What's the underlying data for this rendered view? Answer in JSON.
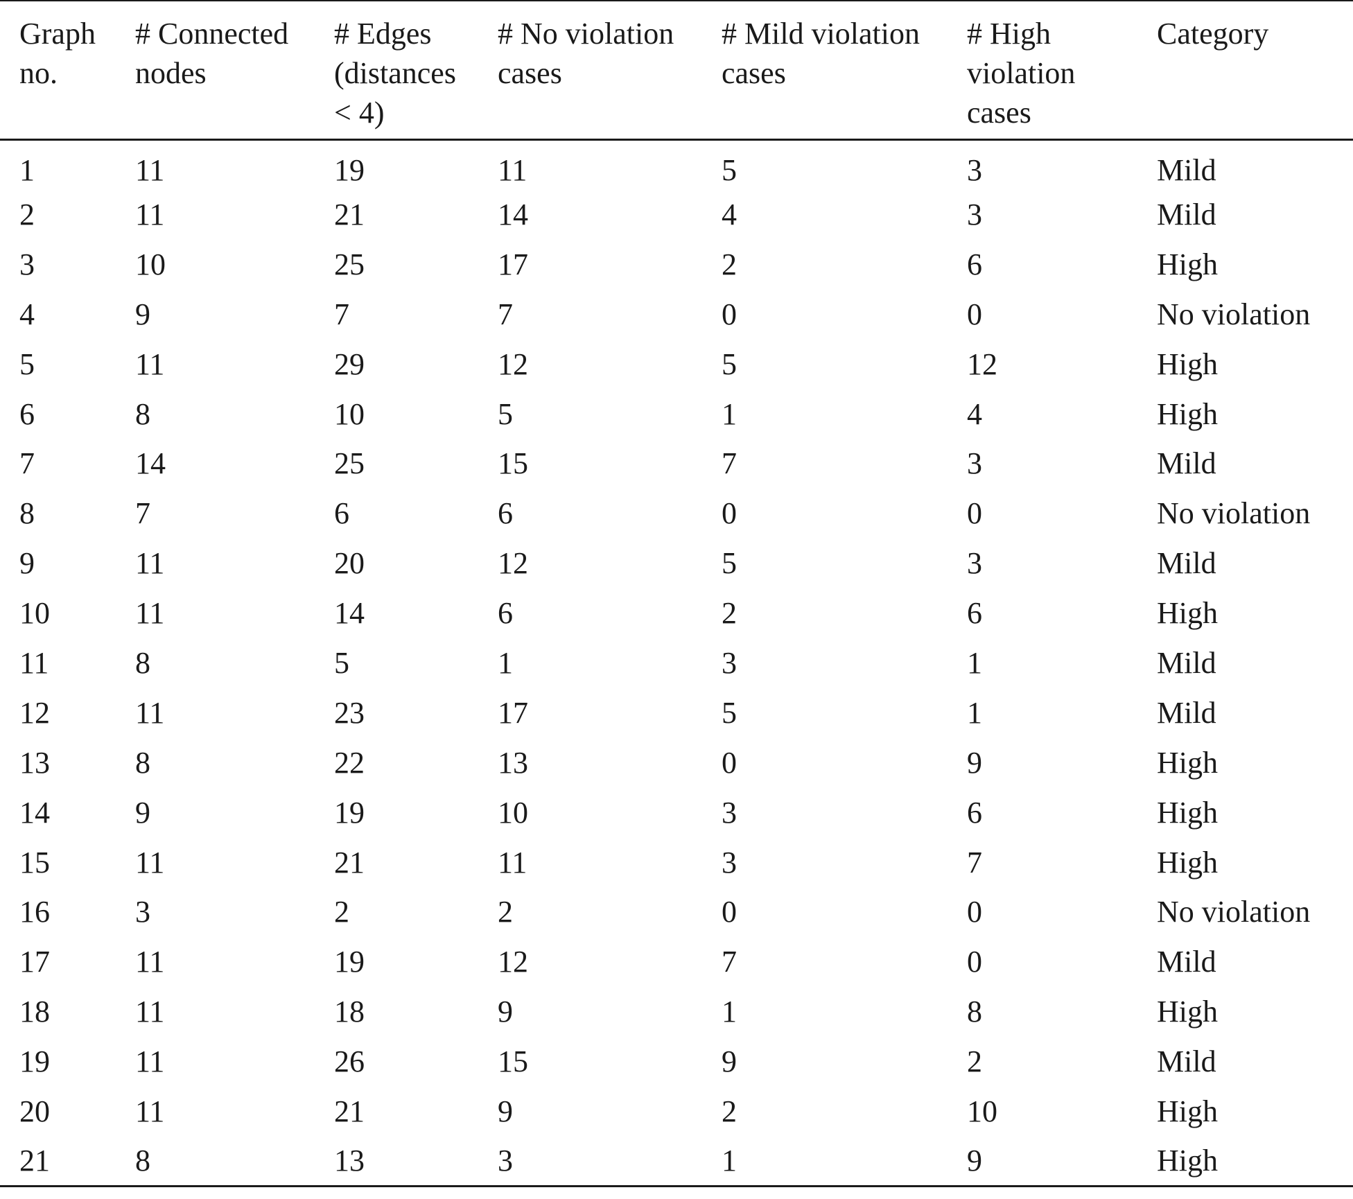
{
  "table": {
    "columns": [
      {
        "lines": [
          "Graph",
          "no."
        ]
      },
      {
        "lines": [
          "# Connected",
          "nodes"
        ]
      },
      {
        "lines": [
          "# Edges",
          "(distances",
          "< 4)"
        ]
      },
      {
        "lines": [
          "# No violation",
          "cases"
        ]
      },
      {
        "lines": [
          "# Mild violation",
          "cases"
        ]
      },
      {
        "lines": [
          "# High",
          "violation",
          "cases"
        ]
      },
      {
        "lines": [
          "Category"
        ]
      }
    ],
    "rows": [
      [
        "1",
        "11",
        "19",
        "11",
        "5",
        "3",
        "Mild"
      ],
      [
        "2",
        "11",
        "21",
        "14",
        "4",
        "3",
        "Mild"
      ],
      [
        "3",
        "10",
        "25",
        "17",
        "2",
        "6",
        "High"
      ],
      [
        "4",
        "9",
        "7",
        "7",
        "0",
        "0",
        "No violation"
      ],
      [
        "5",
        "11",
        "29",
        "12",
        "5",
        "12",
        "High"
      ],
      [
        "6",
        "8",
        "10",
        "5",
        "1",
        "4",
        "High"
      ],
      [
        "7",
        "14",
        "25",
        "15",
        "7",
        "3",
        "Mild"
      ],
      [
        "8",
        "7",
        "6",
        "6",
        "0",
        "0",
        "No violation"
      ],
      [
        "9",
        "11",
        "20",
        "12",
        "5",
        "3",
        "Mild"
      ],
      [
        "10",
        "11",
        "14",
        "6",
        "2",
        "6",
        "High"
      ],
      [
        "11",
        "8",
        "5",
        "1",
        "3",
        "1",
        "Mild"
      ],
      [
        "12",
        "11",
        "23",
        "17",
        "5",
        "1",
        "Mild"
      ],
      [
        "13",
        "8",
        "22",
        "13",
        "0",
        "9",
        "High"
      ],
      [
        "14",
        "9",
        "19",
        "10",
        "3",
        "6",
        "High"
      ],
      [
        "15",
        "11",
        "21",
        "11",
        "3",
        "7",
        "High"
      ],
      [
        "16",
        "3",
        "2",
        "2",
        "0",
        "0",
        "No violation"
      ],
      [
        "17",
        "11",
        "19",
        "12",
        "7",
        "0",
        "Mild"
      ],
      [
        "18",
        "11",
        "18",
        "9",
        "1",
        "8",
        "High"
      ],
      [
        "19",
        "11",
        "26",
        "15",
        "9",
        "2",
        "Mild"
      ],
      [
        "20",
        "11",
        "21",
        "9",
        "2",
        "10",
        "High"
      ],
      [
        "21",
        "8",
        "13",
        "3",
        "1",
        "9",
        "High"
      ]
    ]
  }
}
